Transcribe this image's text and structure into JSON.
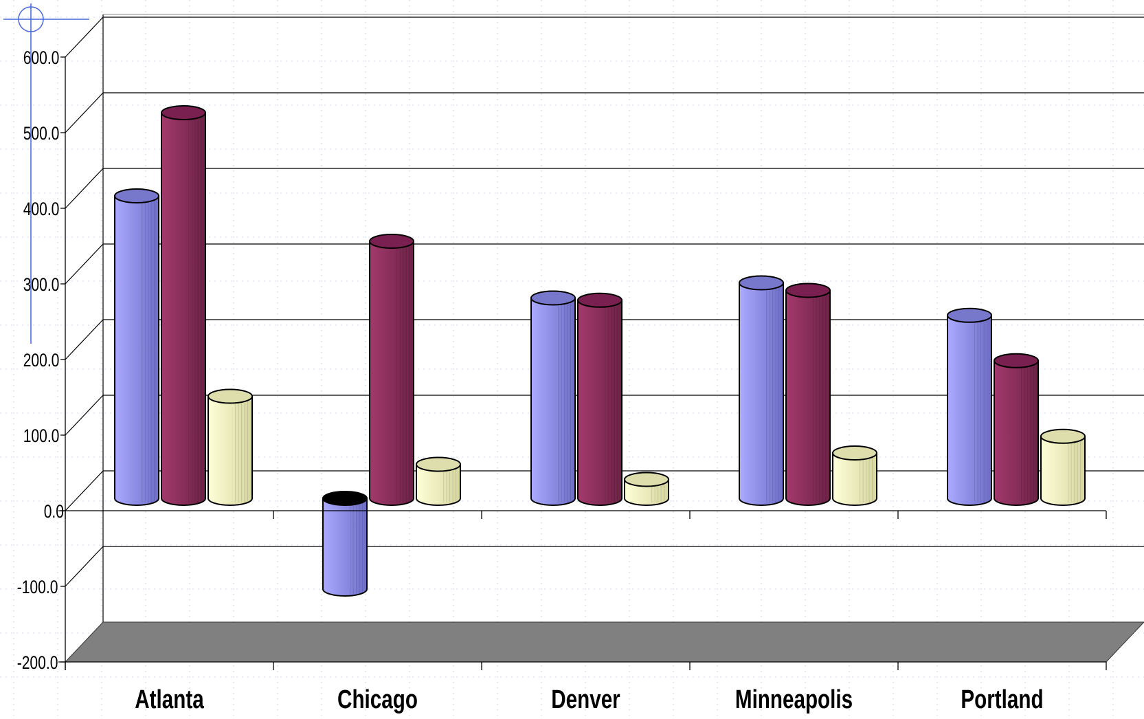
{
  "colors": {
    "series_blue": "#9999ff",
    "series_maroon": "#993366",
    "series_ivory": "#ffffcc",
    "floor": "#808080",
    "grid": "#000000",
    "guide": "#4466dd"
  },
  "chart_data": {
    "type": "bar",
    "style": "3d-cylinder",
    "title": "",
    "xlabel": "",
    "ylabel": "",
    "ylim": [
      -200,
      600
    ],
    "ytick_step": 100,
    "yticks": [
      "600.0",
      "500.0",
      "400.0",
      "300.0",
      "200.0",
      "100.0",
      "0.0",
      "-100.0",
      "-200.0"
    ],
    "grid": true,
    "legend": "none",
    "categories": [
      "Atlanta",
      "Chicago",
      "Denver",
      "Minneapolis",
      "Portland"
    ],
    "series": [
      {
        "color": "#9999ff",
        "values": [
          400,
          -120,
          265,
          285,
          242
        ]
      },
      {
        "color": "#993366",
        "values": [
          510,
          340,
          262,
          275,
          182
        ]
      },
      {
        "color": "#ffffcc",
        "values": [
          135,
          45,
          25,
          60,
          82
        ]
      }
    ]
  }
}
